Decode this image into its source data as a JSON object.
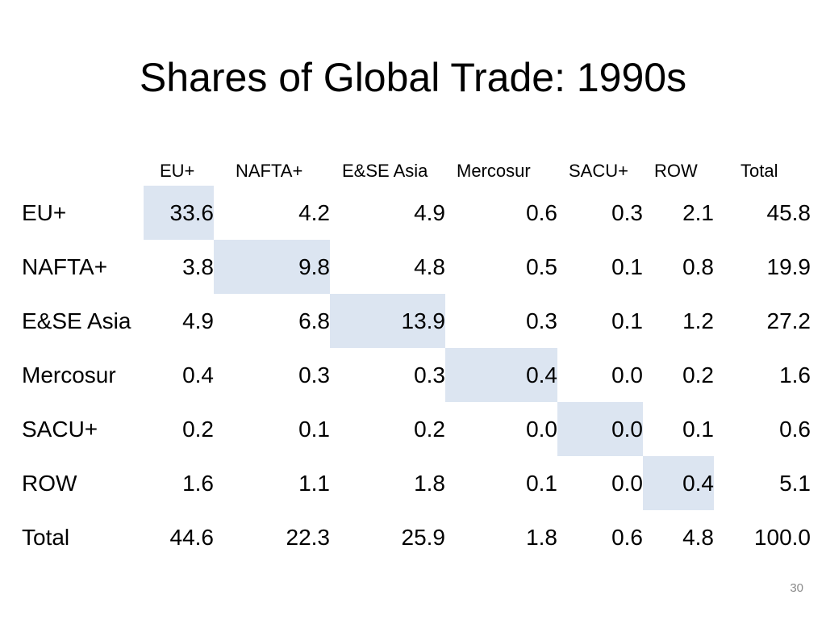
{
  "title": "Shares of Global Trade: 1990s",
  "columns": [
    "EU+",
    "NAFTA+",
    "E&SE Asia",
    "Mercosur",
    "SACU+",
    "ROW",
    "Total"
  ],
  "rows": [
    {
      "label": "EU+",
      "values": [
        "33.6",
        "4.2",
        "4.9",
        "0.6",
        "0.3",
        "2.1",
        "45.8"
      ]
    },
    {
      "label": "NAFTA+",
      "values": [
        "3.8",
        "9.8",
        "4.8",
        "0.5",
        "0.1",
        "0.8",
        "19.9"
      ]
    },
    {
      "label": "E&SE Asia",
      "values": [
        "4.9",
        "6.8",
        "13.9",
        "0.3",
        "0.1",
        "1.2",
        "27.2"
      ]
    },
    {
      "label": "Mercosur",
      "values": [
        "0.4",
        "0.3",
        "0.3",
        "0.4",
        "0.0",
        "0.2",
        "1.6"
      ]
    },
    {
      "label": "SACU+",
      "values": [
        "0.2",
        "0.1",
        "0.2",
        "0.0",
        "0.0",
        "0.1",
        "0.6"
      ]
    },
    {
      "label": "ROW",
      "values": [
        "1.6",
        "1.1",
        "1.8",
        "0.1",
        "0.0",
        "0.4",
        "5.1"
      ]
    },
    {
      "label": "Total",
      "values": [
        "44.6",
        "22.3",
        "25.9",
        "1.8",
        "0.6",
        "4.8",
        "100.0"
      ]
    }
  ],
  "highlight_color": "#dce5f1",
  "page_number": "30"
}
